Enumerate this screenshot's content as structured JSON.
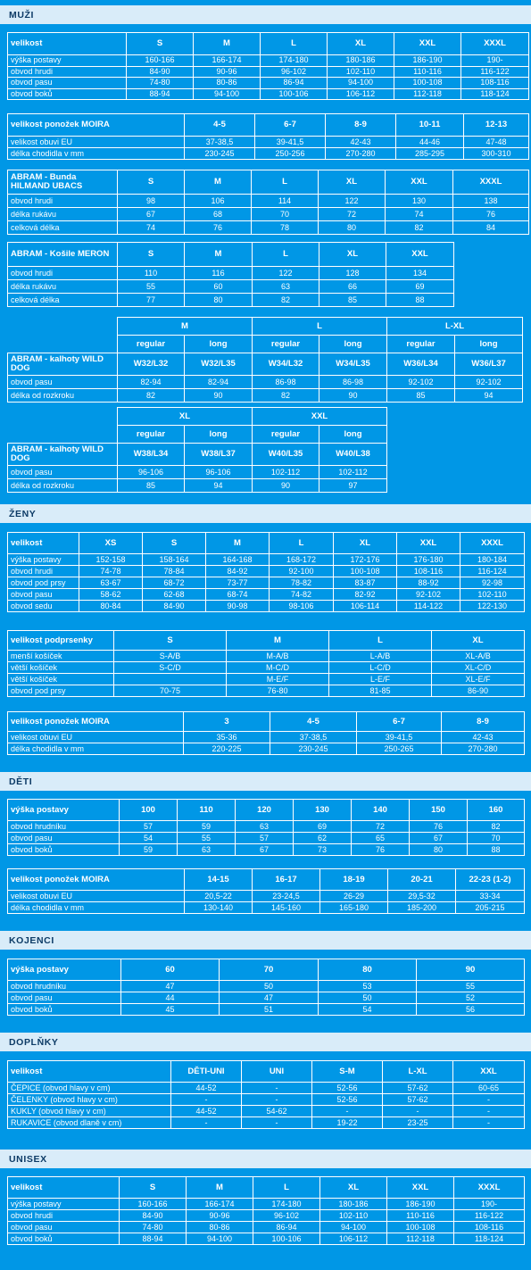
{
  "sections": {
    "muzi": "MUŽI",
    "zeny": "ŽENY",
    "deti": "DĚTI",
    "kojenci": "KOJENCI",
    "doplnky": "DOPLŇKY",
    "unisex": "UNISEX"
  },
  "muzi": {
    "t1": {
      "header": [
        "velikost",
        "S",
        "M",
        "L",
        "XL",
        "XXL",
        "XXXL"
      ],
      "rows": [
        [
          "výška postavy",
          "160-166",
          "166-174",
          "174-180",
          "180-186",
          "186-190",
          "190-"
        ],
        [
          "obvod hrudi",
          "84-90",
          "90-96",
          "96-102",
          "102-110",
          "110-116",
          "116-122"
        ],
        [
          "obvod pasu",
          "74-80",
          "80-86",
          "86-94",
          "94-100",
          "100-108",
          "108-116"
        ],
        [
          "obvod boků",
          "88-94",
          "94-100",
          "100-106",
          "106-112",
          "112-118",
          "118-124"
        ]
      ]
    },
    "t2": {
      "header": [
        "velikost ponožek MOIRA",
        "4-5",
        "6-7",
        "8-9",
        "10-11",
        "12-13"
      ],
      "rows": [
        [
          "velikost obuvi EU",
          "37-38,5",
          "39-41,5",
          "42-43",
          "44-46",
          "47-48"
        ],
        [
          "délka chodidla v mm",
          "230-245",
          "250-256",
          "270-280",
          "285-295",
          "300-310"
        ]
      ]
    },
    "t3": {
      "header": [
        "ABRAM - Bunda HILMAND UBACS",
        "S",
        "M",
        "L",
        "XL",
        "XXL",
        "XXXL"
      ],
      "rows": [
        [
          "obvod hrudi",
          "98",
          "106",
          "114",
          "122",
          "130",
          "138"
        ],
        [
          "délka rukávu",
          "67",
          "68",
          "70",
          "72",
          "74",
          "76"
        ],
        [
          "celková délka",
          "74",
          "76",
          "78",
          "80",
          "82",
          "84"
        ]
      ]
    },
    "t4": {
      "header": [
        "ABRAM - Košile MERON",
        "S",
        "M",
        "L",
        "XL",
        "XXL"
      ],
      "rows": [
        [
          "obvod hrudi",
          "110",
          "116",
          "122",
          "128",
          "134"
        ],
        [
          "délka rukávu",
          "55",
          "60",
          "63",
          "66",
          "69"
        ],
        [
          "celková délka",
          "77",
          "80",
          "82",
          "85",
          "88"
        ]
      ]
    },
    "t5": {
      "groups": [
        "M",
        "L",
        "L-XL"
      ],
      "fits": [
        "regular",
        "long",
        "regular",
        "long",
        "regular",
        "long"
      ],
      "label": "ABRAM - kalhoty WILD DOG",
      "sizes": [
        "W32/L32",
        "W32/L35",
        "W34/L32",
        "W34/L35",
        "W36/L34",
        "W36/L37"
      ],
      "rows": [
        [
          "obvod pasu",
          "82-94",
          "82-94",
          "86-98",
          "86-98",
          "92-102",
          "92-102"
        ],
        [
          "délka od rozkroku",
          "82",
          "90",
          "82",
          "90",
          "85",
          "94"
        ]
      ]
    },
    "t6": {
      "groups": [
        "XL",
        "XXL"
      ],
      "fits": [
        "regular",
        "long",
        "regular",
        "long"
      ],
      "label": "ABRAM - kalhoty WILD DOG",
      "sizes": [
        "W38/L34",
        "W38/L37",
        "W40/L35",
        "W40/L38"
      ],
      "rows": [
        [
          "obvod pasu",
          "96-106",
          "96-106",
          "102-112",
          "102-112"
        ],
        [
          "délka od rozkroku",
          "85",
          "94",
          "90",
          "97"
        ]
      ]
    }
  },
  "zeny": {
    "t1": {
      "header": [
        "velikost",
        "XS",
        "S",
        "M",
        "L",
        "XL",
        "XXL",
        "XXXL"
      ],
      "rows": [
        [
          "výška postavy",
          "152-158",
          "158-164",
          "164-168",
          "168-172",
          "172-176",
          "176-180",
          "180-184"
        ],
        [
          "obvod hrudi",
          "74-78",
          "78-84",
          "84-92",
          "92-100",
          "100-108",
          "108-116",
          "116-124"
        ],
        [
          "obvod pod prsy",
          "63-67",
          "68-72",
          "73-77",
          "78-82",
          "83-87",
          "88-92",
          "92-98"
        ],
        [
          "obvod pasu",
          "58-62",
          "62-68",
          "68-74",
          "74-82",
          "82-92",
          "92-102",
          "102-110"
        ],
        [
          "obvod sedu",
          "80-84",
          "84-90",
          "90-98",
          "98-106",
          "106-114",
          "114-122",
          "122-130"
        ]
      ]
    },
    "t2": {
      "header": [
        "velikost podprsenky",
        "S",
        "M",
        "L",
        "XL"
      ],
      "rows": [
        [
          "menší košíček",
          "S-A/B",
          "M-A/B",
          "L-A/B",
          "XL-A/B"
        ],
        [
          "větší košíček",
          "S-C/D",
          "M-C/D",
          "L-C/D",
          "XL-C/D"
        ],
        [
          "větší košíček",
          "",
          "M-E/F",
          "L-E/F",
          "XL-E/F"
        ],
        [
          "obvod pod prsy",
          "70-75",
          "76-80",
          "81-85",
          "86-90"
        ]
      ]
    },
    "t3": {
      "header": [
        "velikost ponožek MOIRA",
        "3",
        "4-5",
        "6-7",
        "8-9"
      ],
      "rows": [
        [
          "velikost obuvi EU",
          "35-36",
          "37-38,5",
          "39-41,5",
          "42-43"
        ],
        [
          "délka chodidla v mm",
          "220-225",
          "230-245",
          "250-265",
          "270-280"
        ]
      ]
    }
  },
  "deti": {
    "t1": {
      "header": [
        "výška postavy",
        "100",
        "110",
        "120",
        "130",
        "140",
        "150",
        "160"
      ],
      "rows": [
        [
          "obvod hrudníku",
          "57",
          "59",
          "63",
          "69",
          "72",
          "76",
          "82"
        ],
        [
          "obvod pasu",
          "54",
          "55",
          "57",
          "62",
          "65",
          "67",
          "70"
        ],
        [
          "obvod boků",
          "59",
          "63",
          "67",
          "73",
          "76",
          "80",
          "88"
        ]
      ]
    },
    "t2": {
      "header": [
        "velikost ponožek MOIRA",
        "14-15",
        "16-17",
        "18-19",
        "20-21",
        "22-23 (1-2)"
      ],
      "rows": [
        [
          "velikost obuvi EU",
          "20,5-22",
          "23-24,5",
          "26-29",
          "29,5-32",
          "33-34"
        ],
        [
          "délka chodidla v mm",
          "130-140",
          "145-160",
          "165-180",
          "185-200",
          "205-215"
        ]
      ]
    }
  },
  "kojenci": {
    "t1": {
      "header": [
        "výška postavy",
        "60",
        "70",
        "80",
        "90"
      ],
      "rows": [
        [
          "obvod hrudníku",
          "47",
          "50",
          "53",
          "55"
        ],
        [
          "obvod pasu",
          "44",
          "47",
          "50",
          "52"
        ],
        [
          "obvod boků",
          "45",
          "51",
          "54",
          "56"
        ]
      ]
    }
  },
  "doplnky": {
    "t1": {
      "header": [
        "velikost",
        "DĚTI-UNI",
        "UNI",
        "S-M",
        "L-XL",
        "XXL"
      ],
      "rows": [
        [
          "ČEPICE  (obvod hlavy v cm)",
          "44-52",
          "-",
          "52-56",
          "57-62",
          "60-65"
        ],
        [
          "ČELENKY  (obvod hlavy v cm)",
          "-",
          "-",
          "52-56",
          "57-62",
          "-"
        ],
        [
          "KUKLY  (obvod hlavy v cm)",
          "44-52",
          "54-62",
          "-",
          "-",
          "-"
        ],
        [
          "RUKAVICE  (obvod dlaně v cm)",
          "-",
          "-",
          "19-22",
          "23-25",
          "-"
        ]
      ]
    }
  },
  "unisex": {
    "t1": {
      "header": [
        "velikost",
        "S",
        "M",
        "L",
        "XL",
        "XXL",
        "XXXL"
      ],
      "rows": [
        [
          "výška postavy",
          "160-166",
          "166-174",
          "174-180",
          "180-186",
          "186-190",
          "190-"
        ],
        [
          "obvod hrudi",
          "84-90",
          "90-96",
          "96-102",
          "102-110",
          "110-116",
          "116-122"
        ],
        [
          "obvod pasu",
          "74-80",
          "80-86",
          "86-94",
          "94-100",
          "100-108",
          "108-116"
        ],
        [
          "obvod boků",
          "88-94",
          "94-100",
          "100-106",
          "106-112",
          "112-118",
          "118-124"
        ]
      ]
    }
  },
  "colors": {
    "background": "#0097e6",
    "band": "#d9ecf9",
    "band_text": "#0d3b66",
    "grid": "#ffffff"
  }
}
